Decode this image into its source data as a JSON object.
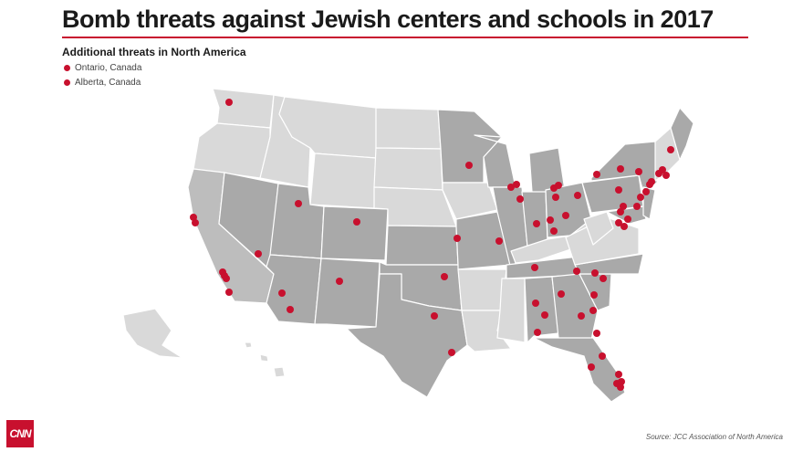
{
  "title": "Bomb threats against Jewish centers and schools in 2017",
  "subtitle": "Additional threats in North America",
  "legend": [
    {
      "label": "Ontario, Canada"
    },
    {
      "label": "Alberta, Canada"
    }
  ],
  "logo_text": "CNN",
  "source": "Source: JCC Association of North America",
  "colors": {
    "accent": "#c8102e",
    "dot": "#c8102e",
    "state_dark": "#a9a9a9",
    "state_mid": "#bdbdbd",
    "state_light": "#d9d9d9",
    "border": "#ffffff"
  }
}
